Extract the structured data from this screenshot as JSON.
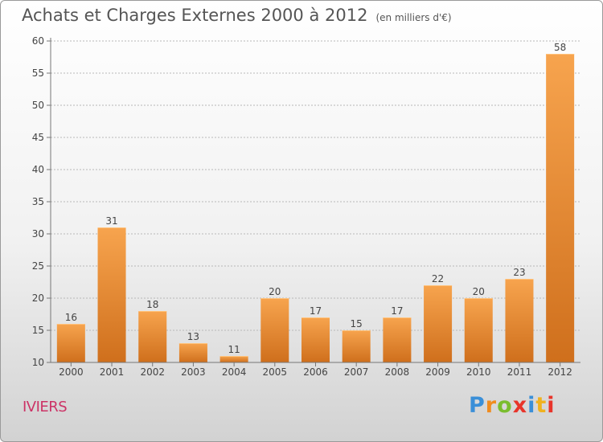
{
  "title": "Achats et Charges Externes 2000 à 2012",
  "subtitle": "(en milliers d'€)",
  "town": "IVIERS",
  "logo": {
    "letters": [
      "P",
      "r",
      "o",
      "x",
      "i",
      "t",
      "i"
    ],
    "colors": [
      "#3a8fd8",
      "#f08c1e",
      "#7abd2e",
      "#e8342a",
      "#3a8fd8",
      "#f0b21e",
      "#e8342a"
    ]
  },
  "colors": {
    "bar_top": "#f7a44e",
    "bar_bottom": "#cf6f1c",
    "axis": "#777777",
    "grid": "#b8b8b8",
    "text": "#444444"
  },
  "chart_data": {
    "type": "bar",
    "title": "Achats et Charges Externes 2000 à 2012",
    "subtitle": "(en milliers d'€)",
    "categories": [
      "2000",
      "2001",
      "2002",
      "2003",
      "2004",
      "2005",
      "2006",
      "2007",
      "2008",
      "2009",
      "2010",
      "2011",
      "2012"
    ],
    "values": [
      16,
      31,
      18,
      13,
      11,
      20,
      17,
      15,
      17,
      22,
      20,
      23,
      58
    ],
    "labels": [
      "16",
      "31",
      "18",
      "13",
      "11",
      "20",
      "17",
      "15",
      "17",
      "22",
      "20",
      "23",
      "58"
    ],
    "ylim": [
      10,
      60
    ],
    "yticks": [
      "10",
      "15",
      "20",
      "25",
      "30",
      "35",
      "40",
      "45",
      "50",
      "55",
      "60"
    ],
    "grid": true
  }
}
